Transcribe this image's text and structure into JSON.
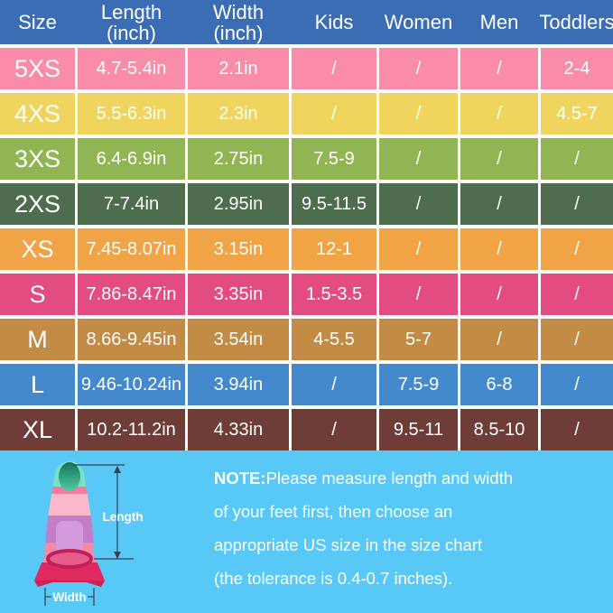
{
  "colors": {
    "header_bg": "#3B6DB5",
    "footer_bg": "#58C8F7",
    "grid_lines": "#FFFFFF",
    "text": "#FFFFFF"
  },
  "chart_data": {
    "type": "table",
    "headers": [
      {
        "label": "Size",
        "sub": ""
      },
      {
        "label": "Length",
        "sub": "(inch)"
      },
      {
        "label": "Width",
        "sub": "(inch)"
      },
      {
        "label": "Kids",
        "sub": ""
      },
      {
        "label": "Women",
        "sub": ""
      },
      {
        "label": "Men",
        "sub": ""
      },
      {
        "label": "Toddlers",
        "sub": ""
      }
    ],
    "rows": [
      {
        "size": "5XS",
        "color": "#F98CA9",
        "cells": [
          "4.7-5.4in",
          "2.1in",
          "/",
          "/",
          "/",
          "2-4"
        ]
      },
      {
        "size": "4XS",
        "color": "#EFD45E",
        "cells": [
          "5.5-6.3in",
          "2.3in",
          "/",
          "/",
          "/",
          "4.5-7"
        ]
      },
      {
        "size": "3XS",
        "color": "#91B553",
        "cells": [
          "6.4-6.9in",
          "2.75in",
          "7.5-9",
          "/",
          "/",
          "/"
        ]
      },
      {
        "size": "2XS",
        "color": "#4E6D4F",
        "cells": [
          "7-7.4in",
          "2.95in",
          "9.5-11.5",
          "/",
          "/",
          "/"
        ]
      },
      {
        "size": "XS",
        "color": "#F1A445",
        "cells": [
          "7.45-8.07in",
          "3.15in",
          "12-1",
          "/",
          "/",
          "/"
        ]
      },
      {
        "size": "S",
        "color": "#E24C80",
        "cells": [
          "7.86-8.47in",
          "3.35in",
          "1.5-3.5",
          "/",
          "/",
          "/"
        ]
      },
      {
        "size": "M",
        "color": "#C28B46",
        "cells": [
          "8.66-9.45in",
          "3.54in",
          "4-5.5",
          "5-7",
          "/",
          "/"
        ]
      },
      {
        "size": "L",
        "color": "#4489CB",
        "cells": [
          "9.46-10.24in",
          "3.94in",
          "/",
          "7.5-9",
          "6-8",
          "/"
        ]
      },
      {
        "size": "XL",
        "color": "#6F3D38",
        "cells": [
          "10.2-11.2in",
          "4.33in",
          "/",
          "9.5-11",
          "8.5-10",
          "/"
        ]
      }
    ]
  },
  "note": {
    "label": "NOTE:",
    "lines": [
      "Please measure length and width",
      "of your feet first, then choose an",
      "appropriate US size in the size chart",
      "(the tolerance is 0.4-0.7 inches)."
    ]
  },
  "fin_diagram": {
    "length_label": "Length",
    "width_label": "Width"
  }
}
